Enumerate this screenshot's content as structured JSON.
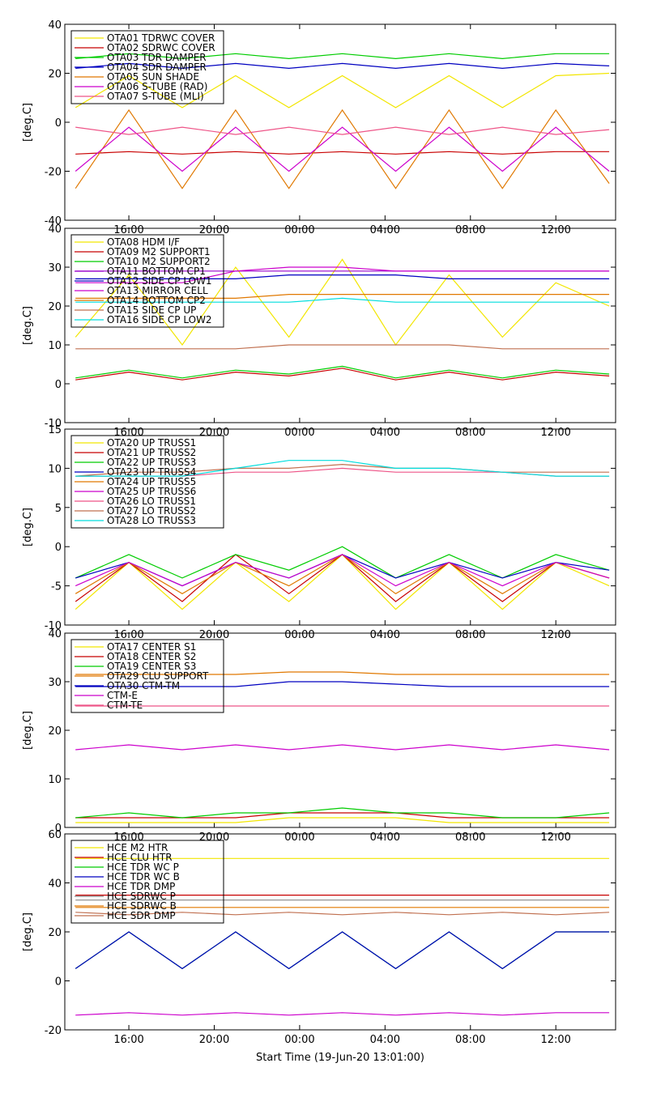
{
  "x_axis": {
    "title": "Start Time (19-Jun-20 13:01:00)",
    "ticks": [
      "16:00",
      "20:00",
      "00:00",
      "04:00",
      "08:00",
      "12:00"
    ],
    "tick_hours": [
      3,
      7,
      11,
      15,
      19,
      23
    ],
    "range_hours": [
      0,
      25.8
    ]
  },
  "chart_data": [
    {
      "type": "line",
      "ylabel": "[deg.C]",
      "ylim": [
        -40,
        40
      ],
      "yticks": [
        -40,
        -20,
        0,
        20,
        40
      ],
      "legend_position": "top-left",
      "x": [
        0.5,
        3,
        5.5,
        8,
        10.5,
        13,
        15.5,
        18,
        20.5,
        23,
        25.5
      ],
      "series": [
        {
          "name": "OTA01 TDRWC COVER",
          "color": "#f2e600",
          "values": [
            6,
            19,
            6,
            19,
            6,
            19,
            6,
            19,
            6,
            19,
            20
          ]
        },
        {
          "name": "OTA02 SDRWC COVER",
          "color": "#c80000",
          "values": [
            -13,
            -12,
            -13,
            -12,
            -13,
            -12,
            -13,
            -12,
            -13,
            -12,
            -12
          ]
        },
        {
          "name": "OTA03 TDR DAMPER",
          "color": "#00cc00",
          "values": [
            26,
            28,
            26,
            28,
            26,
            28,
            26,
            28,
            26,
            28,
            28
          ]
        },
        {
          "name": "OTA04 SDR DAMPER",
          "color": "#0000c0",
          "values": [
            22,
            24,
            22,
            24,
            22,
            24,
            22,
            24,
            22,
            24,
            23
          ]
        },
        {
          "name": "OTA05 SUN SHADE",
          "color": "#e07800",
          "values": [
            -27,
            5,
            -27,
            5,
            -27,
            5,
            -27,
            5,
            -27,
            5,
            -25
          ]
        },
        {
          "name": "OTA06 S-TUBE (RAD)",
          "color": "#cc00cc",
          "values": [
            -20,
            -2,
            -20,
            -2,
            -20,
            -2,
            -20,
            -2,
            -20,
            -2,
            -20
          ]
        },
        {
          "name": "OTA07 S-TUBE (MLI)",
          "color": "#ee5588",
          "values": [
            -2,
            -5,
            -2,
            -5,
            -2,
            -5,
            -2,
            -5,
            -2,
            -5,
            -3
          ]
        }
      ]
    },
    {
      "type": "line",
      "ylabel": "[deg.C]",
      "ylim": [
        -10,
        40
      ],
      "yticks": [
        -10,
        0,
        10,
        20,
        30,
        40
      ],
      "legend_position": "top-left",
      "x": [
        0.5,
        3,
        5.5,
        8,
        10.5,
        13,
        15.5,
        18,
        20.5,
        23,
        25.5
      ],
      "series": [
        {
          "name": "OTA08 HDM I/F",
          "color": "#f2e600",
          "values": [
            12,
            28,
            10,
            30,
            12,
            32,
            10,
            28,
            12,
            26,
            20
          ]
        },
        {
          "name": "OTA09 M2 SUPPORT1",
          "color": "#c80000",
          "values": [
            1,
            3,
            1,
            3,
            2,
            4,
            1,
            3,
            1,
            3,
            2
          ]
        },
        {
          "name": "OTA10 M2 SUPPORT2",
          "color": "#00cc00",
          "values": [
            1.5,
            3.5,
            1.5,
            3.5,
            2.5,
            4.5,
            1.5,
            3.5,
            1.5,
            3.5,
            2.5
          ]
        },
        {
          "name": "OTA11 BOTTOM CP1",
          "color": "#9900cc",
          "values": [
            29,
            29,
            29,
            29,
            29,
            29,
            29,
            29,
            29,
            29,
            29
          ]
        },
        {
          "name": "OTA12 SIDE CP LOW1",
          "color": "#0000c0",
          "values": [
            27,
            27,
            27,
            27,
            28,
            28,
            28,
            27,
            27,
            27,
            27
          ]
        },
        {
          "name": "OTA13 MIRROR CELL",
          "color": "#cc00cc",
          "values": [
            26,
            26,
            26,
            29,
            30,
            30,
            29,
            29,
            29,
            29,
            29
          ]
        },
        {
          "name": "OTA14 BOTTOM CP2",
          "color": "#e07800",
          "values": [
            22,
            22,
            22,
            22,
            23,
            23,
            23,
            23,
            23,
            23,
            23
          ]
        },
        {
          "name": "OTA15 SIDE CP UP",
          "color": "#c07050",
          "values": [
            9,
            9,
            9,
            9,
            10,
            10,
            10,
            10,
            9,
            9,
            9
          ]
        },
        {
          "name": "OTA16 SIDE CP LOW2",
          "color": "#00dddd",
          "values": [
            21,
            21,
            21,
            21,
            21,
            22,
            21,
            21,
            21,
            21,
            21
          ]
        }
      ]
    },
    {
      "type": "line",
      "ylabel": "[deg.C]",
      "ylim": [
        -10,
        15
      ],
      "yticks": [
        -10,
        -5,
        0,
        5,
        10,
        15
      ],
      "legend_position": "top-left",
      "x": [
        0.5,
        3,
        5.5,
        8,
        10.5,
        13,
        15.5,
        18,
        20.5,
        23,
        25.5
      ],
      "series": [
        {
          "name": "OTA20 UP TRUSS1",
          "color": "#f2e600",
          "values": [
            -8,
            -2,
            -8,
            -2,
            -7,
            -1,
            -8,
            -2,
            -8,
            -2,
            -5
          ]
        },
        {
          "name": "OTA21 UP TRUSS2",
          "color": "#c80000",
          "values": [
            -7,
            -2,
            -7,
            -1,
            -6,
            -1,
            -7,
            -2,
            -7,
            -2,
            -4
          ]
        },
        {
          "name": "OTA22 UP TRUSS3",
          "color": "#00cc00",
          "values": [
            -4,
            -1,
            -4,
            -1,
            -3,
            0,
            -4,
            -1,
            -4,
            -1,
            -3
          ]
        },
        {
          "name": "OTA23 UP TRUSS4",
          "color": "#0000c0",
          "values": [
            -4,
            -2,
            -5,
            -2,
            -4,
            -1,
            -4,
            -2,
            -4,
            -2,
            -3
          ]
        },
        {
          "name": "OTA24 UP TRUSS5",
          "color": "#e07800",
          "values": [
            -6,
            -2,
            -6,
            -2,
            -5,
            -1,
            -6,
            -2,
            -6,
            -2,
            -4
          ]
        },
        {
          "name": "OTA25 UP TRUSS6",
          "color": "#cc00cc",
          "values": [
            -5,
            -2,
            -5,
            -2,
            -4,
            -1,
            -5,
            -2,
            -5,
            -2,
            -4
          ]
        },
        {
          "name": "OTA26 LO TRUSS1",
          "color": "#ee5588",
          "values": [
            9,
            9,
            9,
            9.5,
            9.5,
            10,
            9.5,
            9.5,
            9.5,
            9,
            9
          ]
        },
        {
          "name": "OTA27 LO TRUSS2",
          "color": "#c07050",
          "values": [
            9,
            9.5,
            9.5,
            10,
            10,
            10.5,
            10,
            10,
            9.5,
            9.5,
            9.5
          ]
        },
        {
          "name": "OTA28 LO TRUSS3",
          "color": "#00dddd",
          "values": [
            9,
            9,
            9,
            10,
            11,
            11,
            10,
            10,
            9.5,
            9,
            9
          ]
        }
      ]
    },
    {
      "type": "line",
      "ylabel": "[deg.C]",
      "ylim": [
        0,
        40
      ],
      "yticks": [
        0,
        10,
        20,
        30,
        40
      ],
      "legend_position": "top-left",
      "x": [
        0.5,
        3,
        5.5,
        8,
        10.5,
        13,
        15.5,
        18,
        20.5,
        23,
        25.5
      ],
      "series": [
        {
          "name": "OTA17 CENTER S1",
          "color": "#f2e600",
          "values": [
            1,
            1,
            1,
            1,
            2,
            2,
            2,
            1,
            1,
            1,
            1
          ]
        },
        {
          "name": "OTA18 CENTER S2",
          "color": "#c80000",
          "values": [
            2,
            2,
            2,
            2,
            3,
            3,
            3,
            2,
            2,
            2,
            2
          ]
        },
        {
          "name": "OTA19 CENTER S3",
          "color": "#00cc00",
          "values": [
            2,
            3,
            2,
            3,
            3,
            4,
            3,
            3,
            2,
            2,
            3
          ]
        },
        {
          "name": "OTA29 CLU SUPPORT",
          "color": "#e07800",
          "values": [
            31.5,
            31.5,
            31.5,
            31.5,
            32,
            32,
            31.5,
            31.5,
            31.5,
            31.5,
            31.5
          ]
        },
        {
          "name": "OTA30 CTM-TM",
          "color": "#0000c0",
          "values": [
            29,
            29,
            29,
            29,
            30,
            30,
            29.5,
            29,
            29,
            29,
            29
          ]
        },
        {
          "name": "CTM-E",
          "color": "#cc00cc",
          "values": [
            16,
            17,
            16,
            17,
            16,
            17,
            16,
            17,
            16,
            17,
            16
          ]
        },
        {
          "name": "CTM-TE",
          "color": "#ee5588",
          "values": [
            25,
            25,
            25,
            25,
            25,
            25,
            25,
            25,
            25,
            25,
            25
          ]
        }
      ]
    },
    {
      "type": "line",
      "ylabel": "[deg.C]",
      "ylim": [
        -20,
        60
      ],
      "yticks": [
        -20,
        0,
        20,
        40,
        60
      ],
      "legend_position": "top-left",
      "x": [
        0.5,
        3,
        5.5,
        8,
        10.5,
        13,
        15.5,
        18,
        20.5,
        23,
        25.5
      ],
      "series": [
        {
          "name": "HCE M2 HTR",
          "color": "#f2e600",
          "values": [
            50,
            50,
            50,
            50,
            50,
            50,
            50,
            50,
            50,
            50,
            50
          ]
        },
        {
          "name": "HCE CLU HTR",
          "color": "#c80000",
          "values": [
            35,
            35,
            35,
            35,
            35,
            35,
            35,
            35,
            35,
            35,
            35
          ]
        },
        {
          "name": "HCE TDR WC P",
          "color": "#00cc00",
          "values": [
            5,
            20,
            5,
            20,
            5,
            20,
            5,
            20,
            5,
            20,
            20
          ]
        },
        {
          "name": "HCE TDR WC B",
          "color": "#0000c0",
          "values": [
            5,
            20,
            5,
            20,
            5,
            20,
            5,
            20,
            5,
            20,
            20
          ]
        },
        {
          "name": "HCE TDR DMP",
          "color": "#cc00cc",
          "values": [
            -14,
            -13,
            -14,
            -13,
            -14,
            -13,
            -14,
            -13,
            -14,
            -13,
            -13
          ]
        },
        {
          "name": "HCE SDRWC P",
          "color": "#888888",
          "values": [
            33,
            33,
            33,
            33,
            33,
            33,
            33,
            33,
            33,
            33,
            33
          ]
        },
        {
          "name": "HCE SDRWC B",
          "color": "#e07800",
          "values": [
            30,
            30,
            30,
            30,
            30,
            30,
            30,
            30,
            30,
            30,
            30
          ]
        },
        {
          "name": "HCE SDR DMP",
          "color": "#c07050",
          "values": [
            28,
            27,
            28,
            27,
            28,
            27,
            28,
            27,
            28,
            27,
            28
          ]
        }
      ]
    }
  ]
}
